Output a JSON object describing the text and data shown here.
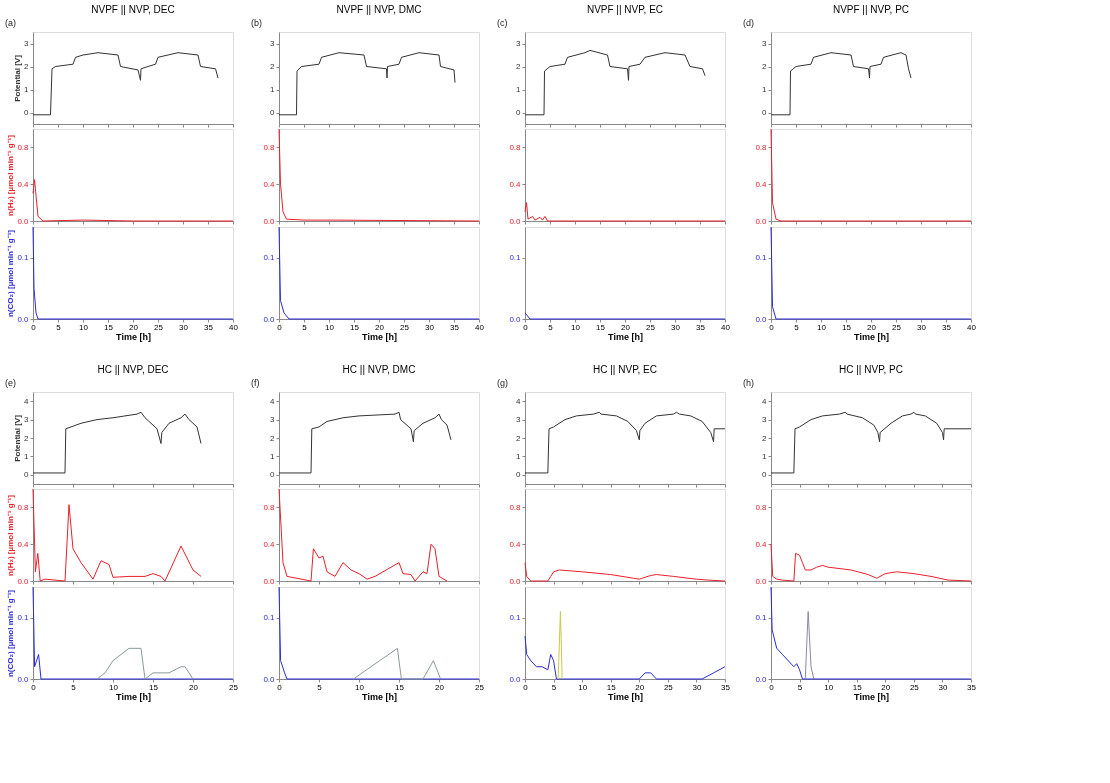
{
  "chart_data": [
    {
      "type": "line",
      "title": "NVPF || NVP, DEC",
      "annotations": [
        "(a)"
      ],
      "xlim": [
        0,
        40
      ],
      "xticks": [
        0,
        5,
        10,
        15,
        20,
        25,
        30,
        35,
        40
      ],
      "ylim": [
        -0.5,
        3.5
      ],
      "yticks": [
        0,
        1,
        2,
        3
      ],
      "ylabel": "Potential [V]",
      "tick_labels": "y",
      "series": [
        {
          "color": "#333333",
          "x": [
            0,
            3.5,
            3.8,
            4.5,
            8,
            8.5,
            10,
            13,
            17,
            17.5,
            21,
            21.5,
            21.6,
            23,
            24.5,
            25,
            29,
            33,
            33.5,
            36.5,
            37
          ],
          "values": [
            -0.1,
            -0.1,
            1.9,
            2.0,
            2.1,
            2.4,
            2.5,
            2.6,
            2.5,
            2.0,
            1.85,
            1.4,
            1.9,
            2.0,
            2.1,
            2.4,
            2.6,
            2.5,
            2.0,
            1.9,
            1.5
          ]
        }
      ]
    },
    {
      "type": "line",
      "xlim": [
        0,
        40
      ],
      "xticks": [
        0,
        5,
        10,
        15,
        20,
        25,
        30,
        35,
        40
      ],
      "ylim": [
        0,
        1.0
      ],
      "yticks": [
        {
          "value": 0,
          "label": "0.0"
        },
        {
          "value": 0.4,
          "label": "0.4"
        },
        {
          "value": 0.8,
          "label": "0.8"
        }
      ],
      "ylabel": "n(H₂) [µmol min⁻¹ g⁻¹]",
      "tick_labels": "y",
      "series": [
        {
          "color": "#e8202a",
          "x": [
            0,
            0.3,
            1,
            2,
            10,
            20,
            30,
            40
          ],
          "values": [
            0.3,
            0.45,
            0.05,
            0.0,
            0.01,
            0.0,
            0.0,
            0.0
          ]
        }
      ]
    },
    {
      "type": "line",
      "xlim": [
        0,
        40
      ],
      "xticks": [
        0,
        5,
        10,
        15,
        20,
        25,
        30,
        35,
        40
      ],
      "ylim": [
        0,
        0.15
      ],
      "yticks": [
        {
          "value": 0,
          "label": "0.0"
        },
        {
          "value": 0.1,
          "label": "0.1"
        }
      ],
      "ylabel": "n(CO₂) [µmol min⁻¹ g⁻¹]",
      "xlabel": "Time [h]",
      "series": [
        {
          "color": "#2b2bd6",
          "x": [
            0,
            0.2,
            0.6,
            1,
            2,
            40
          ],
          "values": [
            0.15,
            0.05,
            0.01,
            0.0,
            0.0,
            0.0
          ]
        }
      ]
    },
    {
      "type": "line",
      "title": "NVPF || NVP, DMC",
      "annotations": [
        "(b)"
      ],
      "xlim": [
        0,
        40
      ],
      "xticks": [
        0,
        5,
        10,
        15,
        20,
        25,
        30,
        35,
        40
      ],
      "ylim": [
        -0.5,
        3.5
      ],
      "yticks": [
        0,
        1,
        2,
        3
      ],
      "tick_labels": "y",
      "series": [
        {
          "color": "#333333",
          "x": [
            0,
            3.5,
            3.6,
            4.5,
            8,
            8.5,
            12,
            17,
            17.5,
            21.5,
            21.6,
            21.7,
            24,
            24.5,
            28,
            32,
            32.3,
            35,
            35.2
          ],
          "values": [
            -0.1,
            -0.1,
            1.8,
            2.0,
            2.1,
            2.4,
            2.6,
            2.5,
            2.0,
            1.9,
            1.5,
            2.0,
            2.1,
            2.4,
            2.6,
            2.5,
            2.0,
            1.85,
            1.3
          ]
        }
      ]
    },
    {
      "type": "line",
      "xlim": [
        0,
        40
      ],
      "xticks": [
        0,
        5,
        10,
        15,
        20,
        25,
        30,
        35,
        40
      ],
      "ylim": [
        0,
        1.0
      ],
      "yticks": [
        {
          "value": 0,
          "label": "0.0"
        },
        {
          "value": 0.4,
          "label": "0.4"
        },
        {
          "value": 0.8,
          "label": "0.8"
        }
      ],
      "tick_labels": "y",
      "series": [
        {
          "color": "#e8202a",
          "x": [
            0,
            0.3,
            0.8,
            1.5,
            5,
            10,
            40
          ],
          "values": [
            1.0,
            0.4,
            0.1,
            0.02,
            0.01,
            0.01,
            0.0
          ]
        }
      ]
    },
    {
      "type": "line",
      "xlim": [
        0,
        40
      ],
      "xticks": [
        0,
        5,
        10,
        15,
        20,
        25,
        30,
        35,
        40
      ],
      "ylim": [
        0,
        0.15
      ],
      "yticks": [
        {
          "value": 0,
          "label": "0.0"
        },
        {
          "value": 0.1,
          "label": "0.1"
        }
      ],
      "xlabel": "Time [h]",
      "series": [
        {
          "color": "#2b2bd6",
          "x": [
            0,
            0.3,
            1,
            2,
            40
          ],
          "values": [
            0.15,
            0.03,
            0.01,
            0.0,
            0.0
          ]
        }
      ]
    },
    {
      "type": "line",
      "title": "NVPF || NVP, EC",
      "annotations": [
        "(c)"
      ],
      "xlim": [
        0,
        40
      ],
      "xticks": [
        0,
        5,
        10,
        15,
        20,
        25,
        30,
        35,
        40
      ],
      "ylim": [
        -0.5,
        3.5
      ],
      "yticks": [
        0,
        1,
        2,
        3
      ],
      "tick_labels": "y",
      "series": [
        {
          "color": "#333333",
          "x": [
            0,
            3.8,
            3.9,
            5,
            8,
            8.5,
            12,
            13,
            16.5,
            17,
            20.5,
            20.7,
            20.8,
            23,
            24,
            28,
            32,
            33,
            35.5,
            36
          ],
          "values": [
            -0.1,
            -0.1,
            1.8,
            2.0,
            2.1,
            2.4,
            2.6,
            2.7,
            2.5,
            2.0,
            1.9,
            1.4,
            2.0,
            2.1,
            2.4,
            2.6,
            2.5,
            2.0,
            1.9,
            1.6
          ]
        }
      ]
    },
    {
      "type": "line",
      "xlim": [
        0,
        40
      ],
      "xticks": [
        0,
        5,
        10,
        15,
        20,
        25,
        30,
        35,
        40
      ],
      "ylim": [
        0,
        1.0
      ],
      "yticks": [
        {
          "value": 0,
          "label": "0.0"
        },
        {
          "value": 0.4,
          "label": "0.4"
        },
        {
          "value": 0.8,
          "label": "0.8"
        }
      ],
      "tick_labels": "y",
      "series": [
        {
          "color": "#e8202a",
          "x": [
            0,
            0.3,
            0.6,
            1.5,
            2,
            3,
            3.5,
            4,
            4.5,
            40
          ],
          "values": [
            0.1,
            0.2,
            0.02,
            0.05,
            0.01,
            0.04,
            0.01,
            0.05,
            0.0,
            0.0
          ]
        }
      ]
    },
    {
      "type": "line",
      "xlim": [
        0,
        40
      ],
      "xticks": [
        0,
        5,
        10,
        15,
        20,
        25,
        30,
        35,
        40
      ],
      "ylim": [
        0,
        0.15
      ],
      "yticks": [
        {
          "value": 0,
          "label": "0.0"
        },
        {
          "value": 0.1,
          "label": "0.1"
        }
      ],
      "xlabel": "Time [h]",
      "series": [
        {
          "color": "#2b2bd6",
          "x": [
            0,
            1,
            40
          ],
          "values": [
            0.01,
            0.0,
            0.0
          ]
        }
      ]
    },
    {
      "type": "line",
      "title": "NVPF || NVP, PC",
      "annotations": [
        "(d)"
      ],
      "xlim": [
        0,
        40
      ],
      "xticks": [
        0,
        5,
        10,
        15,
        20,
        25,
        30,
        35,
        40
      ],
      "ylim": [
        -0.5,
        3.5
      ],
      "yticks": [
        0,
        1,
        2,
        3
      ],
      "tick_labels": "y",
      "series": [
        {
          "color": "#333333",
          "x": [
            0,
            3.8,
            3.9,
            5,
            8,
            8.5,
            12,
            16,
            16.5,
            19.5,
            19.7,
            19.8,
            22,
            22.5,
            26,
            27,
            27.5,
            28
          ],
          "values": [
            -0.1,
            -0.1,
            1.8,
            2.0,
            2.1,
            2.4,
            2.6,
            2.5,
            2.0,
            1.9,
            1.5,
            2.0,
            2.1,
            2.4,
            2.6,
            2.5,
            1.9,
            1.5
          ]
        }
      ]
    },
    {
      "type": "line",
      "xlim": [
        0,
        40
      ],
      "xticks": [
        0,
        5,
        10,
        15,
        20,
        25,
        30,
        35,
        40
      ],
      "ylim": [
        0,
        1.0
      ],
      "yticks": [
        {
          "value": 0,
          "label": "0.0"
        },
        {
          "value": 0.4,
          "label": "0.4"
        },
        {
          "value": 0.8,
          "label": "0.8"
        }
      ],
      "tick_labels": "y",
      "series": [
        {
          "color": "#e8202a",
          "x": [
            0,
            0.3,
            1,
            2,
            40
          ],
          "values": [
            1.0,
            0.2,
            0.02,
            0.0,
            0.0
          ]
        }
      ]
    },
    {
      "type": "line",
      "xlim": [
        0,
        40
      ],
      "xticks": [
        0,
        5,
        10,
        15,
        20,
        25,
        30,
        35,
        40
      ],
      "ylim": [
        0,
        0.15
      ],
      "yticks": [
        {
          "value": 0,
          "label": "0.0"
        },
        {
          "value": 0.1,
          "label": "0.1"
        }
      ],
      "xlabel": "Time [h]",
      "series": [
        {
          "color": "#2b2bd6",
          "x": [
            0,
            0.3,
            1,
            40
          ],
          "values": [
            0.15,
            0.02,
            0.0,
            0.0
          ]
        }
      ]
    },
    {
      "type": "line",
      "title": "HC || NVP, DEC",
      "annotations": [
        "(e)"
      ],
      "xlim": [
        0,
        25
      ],
      "xticks": [
        0,
        5,
        10,
        15,
        20,
        25
      ],
      "ylim": [
        -0.5,
        4.5
      ],
      "yticks": [
        0,
        1,
        2,
        3,
        4
      ],
      "ylabel": "Potential [V]",
      "tick_labels": "y",
      "series": [
        {
          "color": "#333333",
          "x": [
            0,
            4,
            4.1,
            6,
            8,
            10,
            13,
            13.5,
            14,
            15.5,
            16,
            16.1,
            17,
            18.5,
            19,
            19.5,
            20.5,
            21
          ],
          "values": [
            0.1,
            0.1,
            2.5,
            2.8,
            3.0,
            3.1,
            3.3,
            3.4,
            3.1,
            2.5,
            1.7,
            2.3,
            2.8,
            3.1,
            3.3,
            3.0,
            2.6,
            1.7
          ]
        }
      ]
    },
    {
      "type": "line",
      "xlim": [
        0,
        25
      ],
      "xticks": [
        0,
        5,
        10,
        15,
        20,
        25
      ],
      "ylim": [
        0,
        1.0
      ],
      "yticks": [
        {
          "value": 0,
          "label": "0.0"
        },
        {
          "value": 0.4,
          "label": "0.4"
        },
        {
          "value": 0.8,
          "label": "0.8"
        }
      ],
      "ylabel": "n(H₂) [µmol min⁻¹ g⁻¹]",
      "tick_labels": "y",
      "series": [
        {
          "color": "#e8202a",
          "x": [
            0,
            0.3,
            0.6,
            0.9,
            1.5,
            4,
            4.5,
            5,
            6,
            7.5,
            8.5,
            9.5,
            10,
            12,
            14,
            15,
            16,
            16.5,
            18.5,
            20,
            21
          ],
          "values": [
            1.0,
            0.1,
            0.3,
            0.0,
            0.02,
            0.0,
            0.83,
            0.35,
            0.2,
            0.02,
            0.22,
            0.18,
            0.04,
            0.05,
            0.05,
            0.08,
            0.05,
            0.0,
            0.38,
            0.12,
            0.05
          ]
        }
      ]
    },
    {
      "type": "line",
      "xlim": [
        0,
        25
      ],
      "xticks": [
        0,
        5,
        10,
        15,
        20,
        25
      ],
      "ylim": [
        0,
        0.15
      ],
      "yticks": [
        {
          "value": 0,
          "label": "0.0"
        },
        {
          "value": 0.1,
          "label": "0.1"
        }
      ],
      "ylabel": "n(CO₂) [µmol min⁻¹ g⁻¹]",
      "xlabel": "Time [h]",
      "series": [
        {
          "color": "#2b2bd6",
          "x": [
            0,
            0.2,
            0.7,
            1,
            25
          ],
          "values": [
            0.15,
            0.02,
            0.04,
            0.0,
            0.0
          ]
        },
        {
          "color": "#8a9a9a",
          "x": [
            8,
            9,
            10,
            11,
            12,
            13.5,
            14,
            15,
            17,
            18.5,
            19,
            20
          ],
          "values": [
            0.0,
            0.01,
            0.03,
            0.04,
            0.05,
            0.05,
            0.0,
            0.01,
            0.01,
            0.02,
            0.02,
            0.0
          ]
        }
      ]
    },
    {
      "type": "line",
      "title": "HC || NVP, DMC",
      "annotations": [
        "(f)"
      ],
      "xlim": [
        0,
        25
      ],
      "xticks": [
        0,
        5,
        10,
        15,
        20,
        25
      ],
      "ylim": [
        -0.5,
        4.5
      ],
      "yticks": [
        0,
        1,
        2,
        3,
        4
      ],
      "tick_labels": "y",
      "series": [
        {
          "color": "#333333",
          "x": [
            0,
            4,
            4.1,
            5,
            6,
            8,
            10,
            14.5,
            15,
            15.2,
            16.5,
            16.8,
            16.9,
            18,
            19.5,
            20,
            20.3,
            21,
            21.5
          ],
          "values": [
            0.1,
            0.1,
            2.5,
            2.6,
            2.9,
            3.1,
            3.2,
            3.3,
            3.4,
            3.0,
            2.5,
            1.8,
            2.4,
            2.8,
            3.1,
            3.3,
            3.0,
            2.7,
            1.9
          ]
        }
      ]
    },
    {
      "type": "line",
      "xlim": [
        0,
        25
      ],
      "xticks": [
        0,
        5,
        10,
        15,
        20,
        25
      ],
      "ylim": [
        0,
        1.0
      ],
      "yticks": [
        {
          "value": 0,
          "label": "0.0"
        },
        {
          "value": 0.4,
          "label": "0.4"
        },
        {
          "value": 0.8,
          "label": "0.8"
        }
      ],
      "tick_labels": "y",
      "series": [
        {
          "color": "#e8202a",
          "x": [
            0,
            0.5,
            1,
            4,
            4.3,
            5,
            5.5,
            6,
            7,
            8,
            9,
            10,
            11,
            12,
            13,
            14,
            15,
            15.5,
            16.5,
            17,
            18,
            18.5,
            19,
            19.5,
            20,
            21
          ],
          "values": [
            1.0,
            0.2,
            0.05,
            0.0,
            0.35,
            0.25,
            0.27,
            0.1,
            0.05,
            0.2,
            0.12,
            0.08,
            0.02,
            0.05,
            0.1,
            0.15,
            0.2,
            0.08,
            0.07,
            0.0,
            0.1,
            0.08,
            0.4,
            0.35,
            0.05,
            0.0
          ]
        }
      ]
    },
    {
      "type": "line",
      "xlim": [
        0,
        25
      ],
      "xticks": [
        0,
        5,
        10,
        15,
        20,
        25
      ],
      "ylim": [
        0,
        0.15
      ],
      "yticks": [
        {
          "value": 0,
          "label": "0.0"
        },
        {
          "value": 0.1,
          "label": "0.1"
        }
      ],
      "xlabel": "Time [h]",
      "series": [
        {
          "color": "#2b2bd6",
          "x": [
            0,
            0.2,
            0.7,
            1,
            25
          ],
          "values": [
            0.15,
            0.03,
            0.01,
            0.0,
            0.0
          ]
        },
        {
          "color": "#8a9a9a",
          "x": [
            9.3,
            14.8,
            15.3,
            18,
            19.3,
            20.2
          ],
          "values": [
            0.0,
            0.05,
            0.0,
            0.0,
            0.03,
            0.0
          ]
        }
      ]
    },
    {
      "type": "line",
      "title": "HC || NVP, EC",
      "annotations": [
        "(g)"
      ],
      "xlim": [
        0,
        35
      ],
      "xticks": [
        0,
        5,
        10,
        15,
        20,
        25,
        30,
        35
      ],
      "ylim": [
        -0.5,
        4.5
      ],
      "yticks": [
        0,
        1,
        2,
        3,
        4
      ],
      "tick_labels": "y",
      "series": [
        {
          "color": "#333333",
          "x": [
            0,
            4,
            4.2,
            5,
            7,
            9,
            12,
            13,
            13.3,
            16,
            18,
            19.5,
            20,
            20.1,
            21,
            23,
            26,
            26.5,
            27,
            29,
            31,
            32.5,
            33,
            33.1,
            35
          ],
          "values": [
            0.1,
            0.1,
            2.5,
            2.6,
            3.0,
            3.2,
            3.3,
            3.4,
            3.3,
            3.2,
            2.9,
            2.4,
            1.9,
            2.4,
            2.8,
            3.2,
            3.3,
            3.4,
            3.3,
            3.2,
            2.9,
            2.3,
            1.8,
            2.5,
            2.5
          ]
        }
      ]
    },
    {
      "type": "line",
      "xlim": [
        0,
        35
      ],
      "xticks": [
        0,
        5,
        10,
        15,
        20,
        25,
        30,
        35
      ],
      "ylim": [
        0,
        1.0
      ],
      "yticks": [
        {
          "value": 0,
          "label": "0.0"
        },
        {
          "value": 0.4,
          "label": "0.4"
        },
        {
          "value": 0.8,
          "label": "0.8"
        }
      ],
      "tick_labels": "y",
      "series": [
        {
          "color": "#e8202a",
          "x": [
            0,
            0.3,
            1,
            4,
            4.5,
            5,
            6,
            10,
            15,
            19,
            20,
            22,
            23,
            26,
            30,
            32,
            35
          ],
          "values": [
            0.2,
            0.05,
            0.0,
            0.0,
            0.05,
            0.1,
            0.12,
            0.1,
            0.07,
            0.03,
            0.02,
            0.06,
            0.07,
            0.05,
            0.02,
            0.01,
            0.0
          ]
        }
      ]
    },
    {
      "type": "line",
      "xlim": [
        0,
        35
      ],
      "xticks": [
        0,
        5,
        10,
        15,
        20,
        25,
        30,
        35
      ],
      "ylim": [
        0,
        0.15
      ],
      "yticks": [
        {
          "value": 0,
          "label": "0.0"
        },
        {
          "value": 0.1,
          "label": "0.1"
        }
      ],
      "xlabel": "Time [h]",
      "series": [
        {
          "color": "#2b2bd6",
          "x": [
            0,
            0.3,
            1,
            2,
            3,
            4,
            4.5,
            5,
            5.5,
            20,
            21,
            22,
            23,
            31,
            33,
            35
          ],
          "values": [
            0.07,
            0.04,
            0.03,
            0.02,
            0.02,
            0.015,
            0.04,
            0.03,
            0.0,
            0.0,
            0.01,
            0.01,
            0.0,
            0.0,
            0.01,
            0.02
          ]
        },
        {
          "color": "#c8c84a",
          "x": [
            5.8,
            6.2,
            6.5
          ],
          "values": [
            0.0,
            0.11,
            0.0
          ]
        }
      ]
    },
    {
      "type": "line",
      "title": "HC || NVP, PC",
      "annotations": [
        "(h)"
      ],
      "xlim": [
        0,
        35
      ],
      "xticks": [
        0,
        5,
        10,
        15,
        20,
        25,
        30,
        35
      ],
      "ylim": [
        -0.5,
        4.5
      ],
      "yticks": [
        0,
        1,
        2,
        3,
        4
      ],
      "tick_labels": "y",
      "series": [
        {
          "color": "#333333",
          "x": [
            0,
            4,
            4.2,
            5,
            7,
            9,
            12,
            13,
            13.3,
            16,
            18,
            18.7,
            19,
            19.1,
            21,
            23,
            24.5,
            25,
            25.3,
            27,
            29,
            30,
            30.2,
            30.3,
            35
          ],
          "values": [
            0.1,
            0.1,
            2.5,
            2.6,
            3.0,
            3.2,
            3.3,
            3.4,
            3.3,
            3.1,
            2.7,
            2.3,
            1.8,
            2.3,
            2.8,
            3.2,
            3.3,
            3.4,
            3.3,
            3.2,
            2.8,
            2.3,
            1.9,
            2.5,
            2.5
          ]
        }
      ]
    },
    {
      "type": "line",
      "xlim": [
        0,
        35
      ],
      "xticks": [
        0,
        5,
        10,
        15,
        20,
        25,
        30,
        35
      ],
      "ylim": [
        0,
        1.0
      ],
      "yticks": [
        {
          "value": 0,
          "label": "0.0"
        },
        {
          "value": 0.4,
          "label": "0.4"
        },
        {
          "value": 0.8,
          "label": "0.8"
        }
      ],
      "tick_labels": "y",
      "series": [
        {
          "color": "#e8202a",
          "x": [
            0,
            0.3,
            1,
            2,
            4,
            4.3,
            5,
            5.5,
            6,
            7,
            8,
            9,
            10,
            14,
            17,
            18.5,
            20,
            22,
            25,
            28,
            31,
            35
          ],
          "values": [
            0.4,
            0.05,
            0.02,
            0.01,
            0.0,
            0.3,
            0.28,
            0.2,
            0.12,
            0.12,
            0.15,
            0.17,
            0.15,
            0.12,
            0.07,
            0.03,
            0.08,
            0.1,
            0.08,
            0.05,
            0.01,
            0.0
          ]
        }
      ]
    },
    {
      "type": "line",
      "xlim": [
        0,
        35
      ],
      "xticks": [
        0,
        5,
        10,
        15,
        20,
        25,
        30,
        35
      ],
      "ylim": [
        0,
        0.15
      ],
      "yticks": [
        {
          "value": 0,
          "label": "0.0"
        },
        {
          "value": 0.1,
          "label": "0.1"
        }
      ],
      "xlabel": "Time [h]",
      "series": [
        {
          "color": "#2b2bd6",
          "x": [
            0,
            0.2,
            1,
            2,
            4,
            4.5,
            5,
            5.5,
            35
          ],
          "values": [
            0.15,
            0.08,
            0.05,
            0.04,
            0.02,
            0.025,
            0.015,
            0.0,
            0.0
          ]
        },
        {
          "color": "#8a8aa0",
          "x": [
            6,
            6.5,
            7,
            7.5
          ],
          "values": [
            0.0,
            0.11,
            0.02,
            0.0
          ]
        }
      ]
    }
  ]
}
